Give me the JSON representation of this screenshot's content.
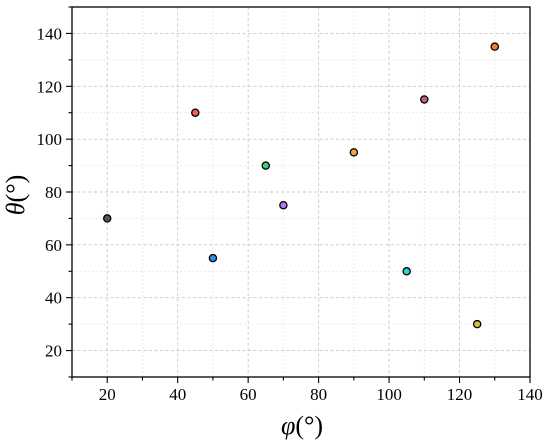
{
  "chart_data": {
    "type": "scatter",
    "title": "",
    "xlabel": "φ(°)",
    "ylabel": "θ(°)",
    "xlabel_symbol": "φ",
    "xlabel_unit": "(°)",
    "ylabel_symbol": "θ",
    "ylabel_unit": "(°)",
    "xlim": [
      10,
      140
    ],
    "ylim": [
      10,
      150
    ],
    "xticks": [
      20,
      40,
      60,
      80,
      100,
      120,
      140
    ],
    "yticks": [
      20,
      40,
      60,
      80,
      100,
      120,
      140
    ],
    "x_tick_labels": [
      "20",
      "40",
      "60",
      "80",
      "100",
      "120",
      "140"
    ],
    "y_tick_labels": [
      "20",
      "40",
      "60",
      "80",
      "100",
      "120",
      "140"
    ],
    "grid": true,
    "legend": "none",
    "points": [
      {
        "x": 20,
        "y": 70,
        "color": "#555555"
      },
      {
        "x": 45,
        "y": 110,
        "color": "#f25c5c"
      },
      {
        "x": 50,
        "y": 55,
        "color": "#2f8fe8"
      },
      {
        "x": 65,
        "y": 90,
        "color": "#3fcf7a"
      },
      {
        "x": 70,
        "y": 75,
        "color": "#b07cf0"
      },
      {
        "x": 90,
        "y": 95,
        "color": "#f0a33b"
      },
      {
        "x": 105,
        "y": 50,
        "color": "#2ed1d1"
      },
      {
        "x": 110,
        "y": 115,
        "color": "#c4607a"
      },
      {
        "x": 125,
        "y": 30,
        "color": "#c8c83a"
      },
      {
        "x": 130,
        "y": 135,
        "color": "#f57c2a"
      }
    ]
  }
}
